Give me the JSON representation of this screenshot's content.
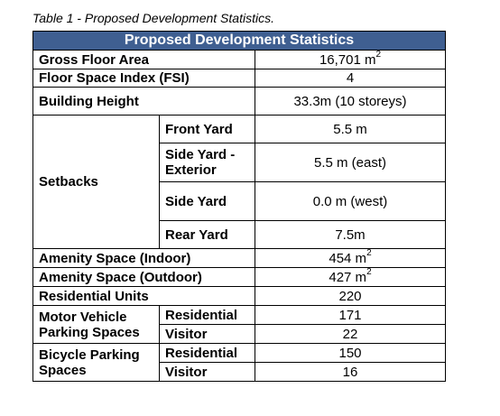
{
  "caption": "Table 1 - Proposed Development Statistics.",
  "header": "Proposed Development Statistics",
  "rows": {
    "gfa": {
      "label": "Gross Floor Area",
      "value": "16,701 m",
      "sup": "2"
    },
    "fsi": {
      "label": "Floor Space Index (FSI)",
      "value": "4"
    },
    "height": {
      "label": "Building Height",
      "value": "33.3m (10 storeys)"
    },
    "setbacks": {
      "label": "Setbacks",
      "front": {
        "label": "Front Yard",
        "value": "5.5 m"
      },
      "side_ext": {
        "label": "Side Yard - Exterior",
        "value": "5.5 m (east)"
      },
      "side": {
        "label": "Side Yard",
        "value": "0.0 m (west)"
      },
      "rear": {
        "label": "Rear Yard",
        "value": "7.5m"
      }
    },
    "amenity_in": {
      "label": "Amenity Space (Indoor)",
      "value": "454 m",
      "sup": "2"
    },
    "amenity_out": {
      "label": "Amenity Space (Outdoor)",
      "value": "427 m",
      "sup": "2"
    },
    "units": {
      "label": "Residential Units",
      "value": "220"
    },
    "vehicle": {
      "label": "Motor Vehicle Parking Spaces",
      "residential": {
        "label": "Residential",
        "value": "171"
      },
      "visitor": {
        "label": "Visitor",
        "value": "22"
      }
    },
    "bicycle": {
      "label": "Bicycle Parking Spaces",
      "residential": {
        "label": "Residential",
        "value": "150"
      },
      "visitor": {
        "label": "Visitor",
        "value": "16"
      }
    }
  }
}
